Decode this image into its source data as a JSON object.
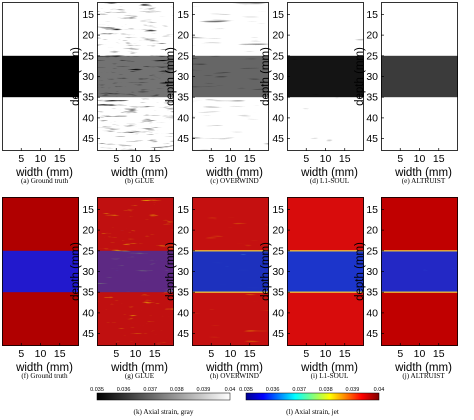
{
  "figure": {
    "y_axis_label": "depth (mm)",
    "x_axis_label": "width (mm)",
    "y_ticks": [
      "15",
      "20",
      "25",
      "30",
      "35",
      "40",
      "45"
    ],
    "x_ticks": [
      "5",
      "10",
      "15"
    ],
    "captions_row1": [
      "(a) Ground truth",
      "(b) GLUE",
      "(c) OVERWIND",
      "(d) L1-SOUL",
      "(e) ALTRUIST"
    ],
    "captions_row2": [
      "(f) Ground truth",
      "(g) GLUE",
      "(h) OVERWIND",
      "(i) L1-SOUL",
      "(j) ALTRUIST"
    ],
    "colorbar_gray": {
      "ticks": [
        "0.035",
        "0.036",
        "0.037",
        "0.038",
        "0.039",
        "0.04"
      ],
      "caption": "(k) Axial strain, gray"
    },
    "colorbar_jet": {
      "ticks": [
        "0.035",
        "0.036",
        "0.037",
        "0.038",
        "0.039",
        "0.04"
      ],
      "caption": "(l) Axial strain, jet"
    }
  },
  "chart_data": {
    "type": "heatmap",
    "xlim_mm": [
      0,
      20
    ],
    "ylim_mm": [
      12,
      48
    ],
    "inclusion_depth_mm": [
      25,
      35
    ],
    "strain_range": [
      0.035,
      0.04
    ],
    "colormaps": [
      "gray",
      "jet"
    ],
    "methods": [
      "Ground truth",
      "GLUE",
      "OVERWIND",
      "L1-SOUL",
      "ALTRUIST"
    ]
  }
}
